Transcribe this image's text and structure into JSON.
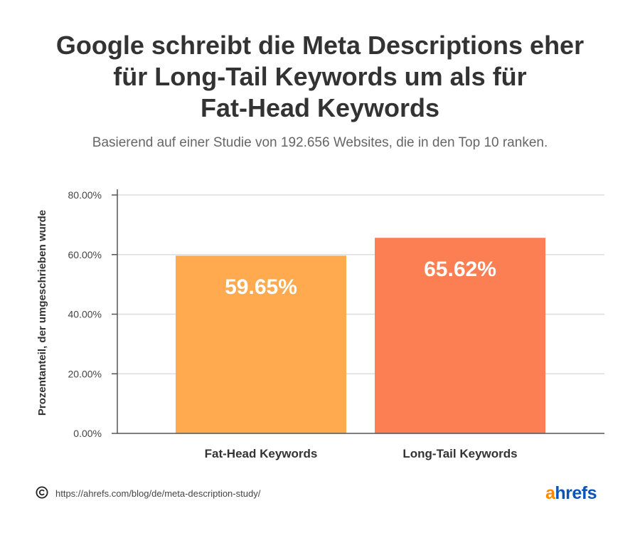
{
  "title_lines": [
    "Google schreibt die Meta Descriptions eher",
    "für Long-Tail Keywords um als für",
    "Fat-Head Keywords"
  ],
  "subtitle": "Basierend auf einer Studie von 192.656 Websites, die in den Top 10 ranken.",
  "footer": {
    "url": "https://ahrefs.com/blog/de/meta-description-study/",
    "logo_a": "a",
    "logo_rest": "hrefs",
    "copyright_icon": "copyright-icon"
  },
  "chart_data": {
    "type": "bar",
    "categories": [
      "Fat-Head Keywords",
      "Long-Tail Keywords"
    ],
    "values": [
      59.65,
      65.62
    ],
    "data_labels": [
      "59.65%",
      "65.62%"
    ],
    "ylabel": "Prozentanteil, der umgeschrieben wurde",
    "xlabel": "",
    "ylim": [
      0,
      80
    ],
    "yticks": [
      0,
      20,
      40,
      60,
      80
    ],
    "ytick_labels": [
      "0.00%",
      "20.00%",
      "40.00%",
      "60.00%",
      "80.00%"
    ],
    "grid": true,
    "colors": [
      "#ffaa4f",
      "#fc7f53"
    ],
    "gridline_color": "#dddddd",
    "axis_color": "#555555"
  }
}
